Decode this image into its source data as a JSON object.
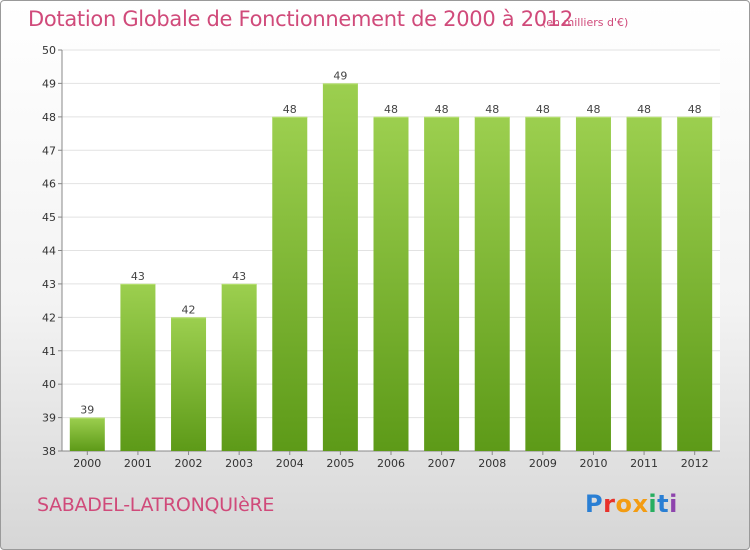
{
  "header": {
    "title": "Dotation Globale de Fonctionnement de 2000 à 2012",
    "unit": "(en milliers d'€)"
  },
  "footer": {
    "commune": "SABADEL-LATRONQUIèRE",
    "logo_text": "Proxiti",
    "logo_colors": [
      "#2a7fd4",
      "#e8312a",
      "#f39c12",
      "#f39c12",
      "#27ae60",
      "#2a7fd4",
      "#8e44ad"
    ]
  },
  "chart_data": {
    "type": "bar",
    "categories": [
      "2000",
      "2001",
      "2002",
      "2003",
      "2004",
      "2005",
      "2006",
      "2007",
      "2008",
      "2009",
      "2010",
      "2011",
      "2012"
    ],
    "values": [
      39,
      43,
      42,
      43,
      48,
      49,
      48,
      48,
      48,
      48,
      48,
      48,
      48
    ],
    "data_labels": [
      "39",
      "43",
      "42",
      "43",
      "48",
      "49",
      "48",
      "48",
      "48",
      "48",
      "48",
      "48",
      "48"
    ],
    "title": "Dotation Globale de Fonctionnement de 2000 à 2012",
    "xlabel": "",
    "ylabel": "",
    "ylim": [
      38,
      50
    ],
    "yticks": [
      "38",
      "39",
      "40",
      "41",
      "42",
      "43",
      "44",
      "45",
      "46",
      "47",
      "48",
      "49",
      "50"
    ],
    "grid": true,
    "bar_color_top": "#9ccf4f",
    "bar_color_bottom": "#5d9a18"
  }
}
